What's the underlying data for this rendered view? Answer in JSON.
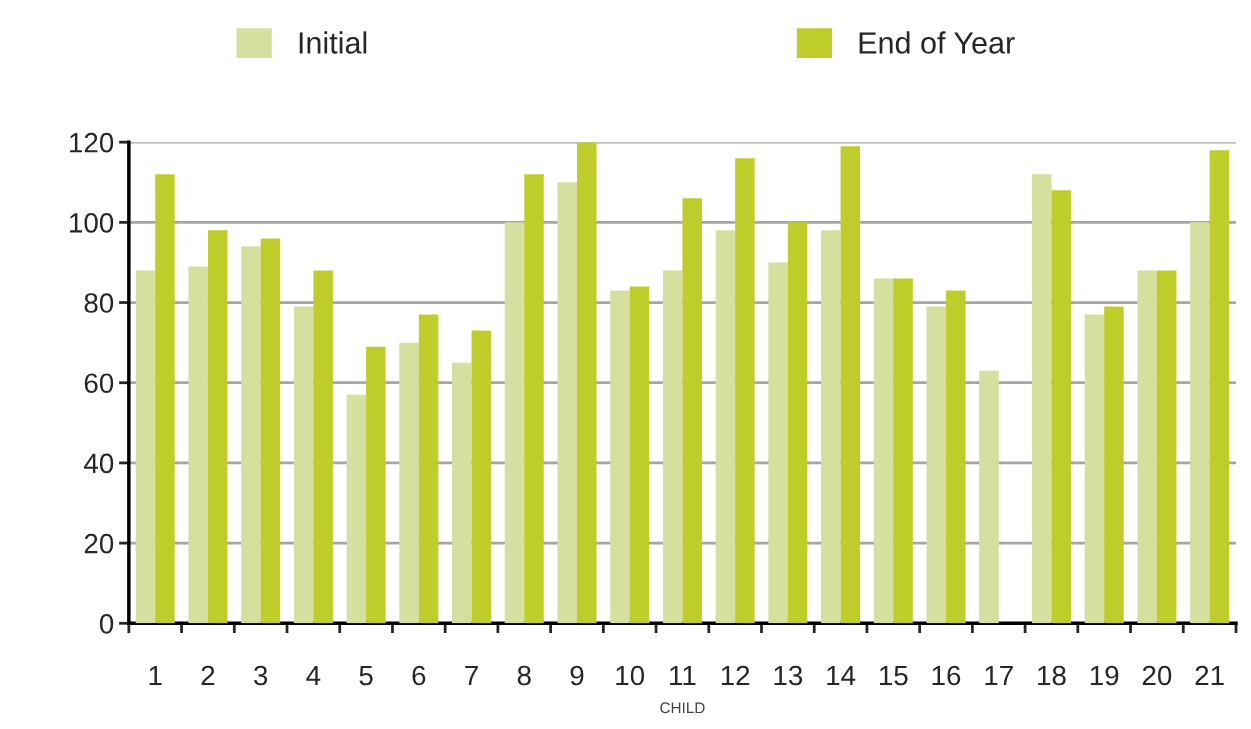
{
  "chart_data": {
    "type": "bar",
    "xlabel": "CHILD",
    "categories": [
      "1",
      "2",
      "3",
      "4",
      "5",
      "6",
      "7",
      "8",
      "9",
      "10",
      "11",
      "12",
      "13",
      "14",
      "15",
      "16",
      "17",
      "18",
      "19",
      "20",
      "21"
    ],
    "series": [
      {
        "name": "Initial",
        "color": "#d5df9e",
        "values": [
          88,
          89,
          94,
          79,
          57,
          70,
          65,
          100,
          110,
          83,
          88,
          98,
          90,
          98,
          86,
          79,
          63,
          112,
          77,
          88,
          100
        ]
      },
      {
        "name": "End of Year",
        "color": "#bfcd2a",
        "values": [
          112,
          98,
          96,
          88,
          69,
          77,
          73,
          112,
          120,
          84,
          106,
          116,
          100,
          119,
          86,
          83,
          null,
          108,
          79,
          88,
          118
        ]
      }
    ],
    "ylim": [
      0,
      120
    ],
    "yticks": [
      0,
      20,
      40,
      60,
      80,
      100,
      120
    ],
    "grid": "y",
    "legend": "top"
  }
}
